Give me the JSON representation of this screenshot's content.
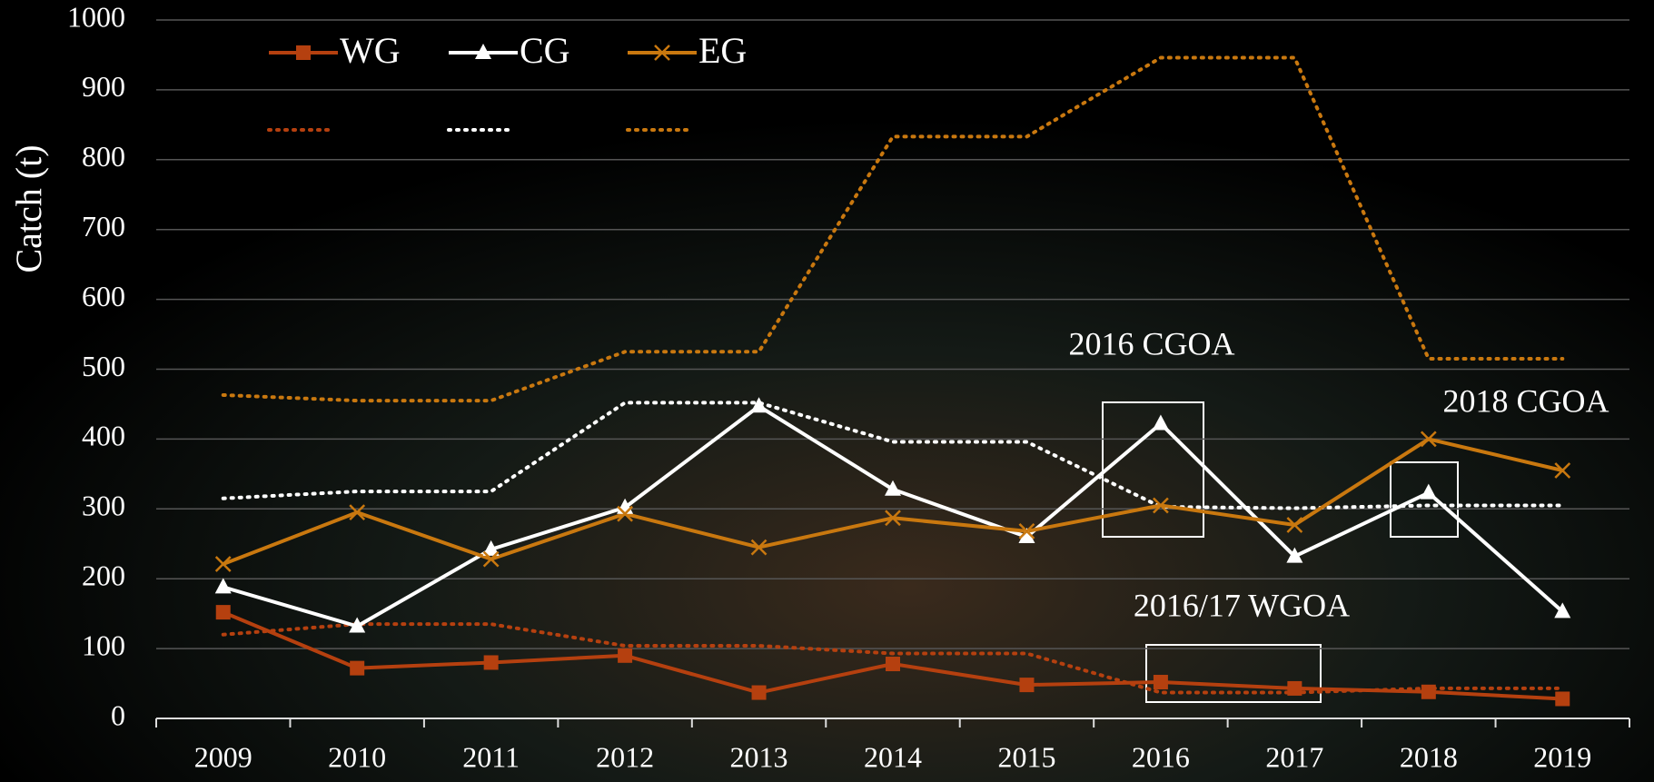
{
  "chart_data": {
    "type": "line",
    "ylabel": "Catch (t)",
    "categories": [
      "2009",
      "2010",
      "2011",
      "2012",
      "2013",
      "2014",
      "2015",
      "2016",
      "2017",
      "2018",
      "2019"
    ],
    "series": [
      {
        "name": "WG",
        "color": "#b5400f",
        "marker": "square",
        "values": [
          152,
          72,
          80,
          90,
          37,
          78,
          48,
          52,
          43,
          38,
          28
        ]
      },
      {
        "name": "CG",
        "color": "#ffffff",
        "marker": "triangle",
        "values": [
          188,
          132,
          242,
          302,
          447,
          328,
          260,
          422,
          232,
          323,
          153
        ]
      },
      {
        "name": "EG",
        "color": "#c9780f",
        "marker": "x",
        "values": [
          221,
          295,
          228,
          293,
          245,
          287,
          268,
          305,
          277,
          400,
          355
        ]
      },
      {
        "color": "#b5400f",
        "dotted": true,
        "values": [
          120,
          135,
          135,
          104,
          104,
          93,
          93,
          37,
          37,
          43,
          43
        ]
      },
      {
        "color": "#ffffff",
        "dotted": true,
        "values": [
          315,
          325,
          325,
          452,
          452,
          396,
          396,
          303,
          301,
          305,
          305
        ]
      },
      {
        "color": "#c9780f",
        "dotted": true,
        "values": [
          463,
          455,
          455,
          525,
          525,
          833,
          833,
          946,
          946,
          515,
          515
        ]
      }
    ],
    "annotations": [
      "2016 CGOA",
      "2018 CGOA",
      "2016/17 WGOA"
    ],
    "ylim": [
      0,
      1000
    ],
    "yticks": [
      0,
      100,
      200,
      300,
      400,
      500,
      600,
      700,
      800,
      900,
      1000
    ],
    "grid": true
  }
}
